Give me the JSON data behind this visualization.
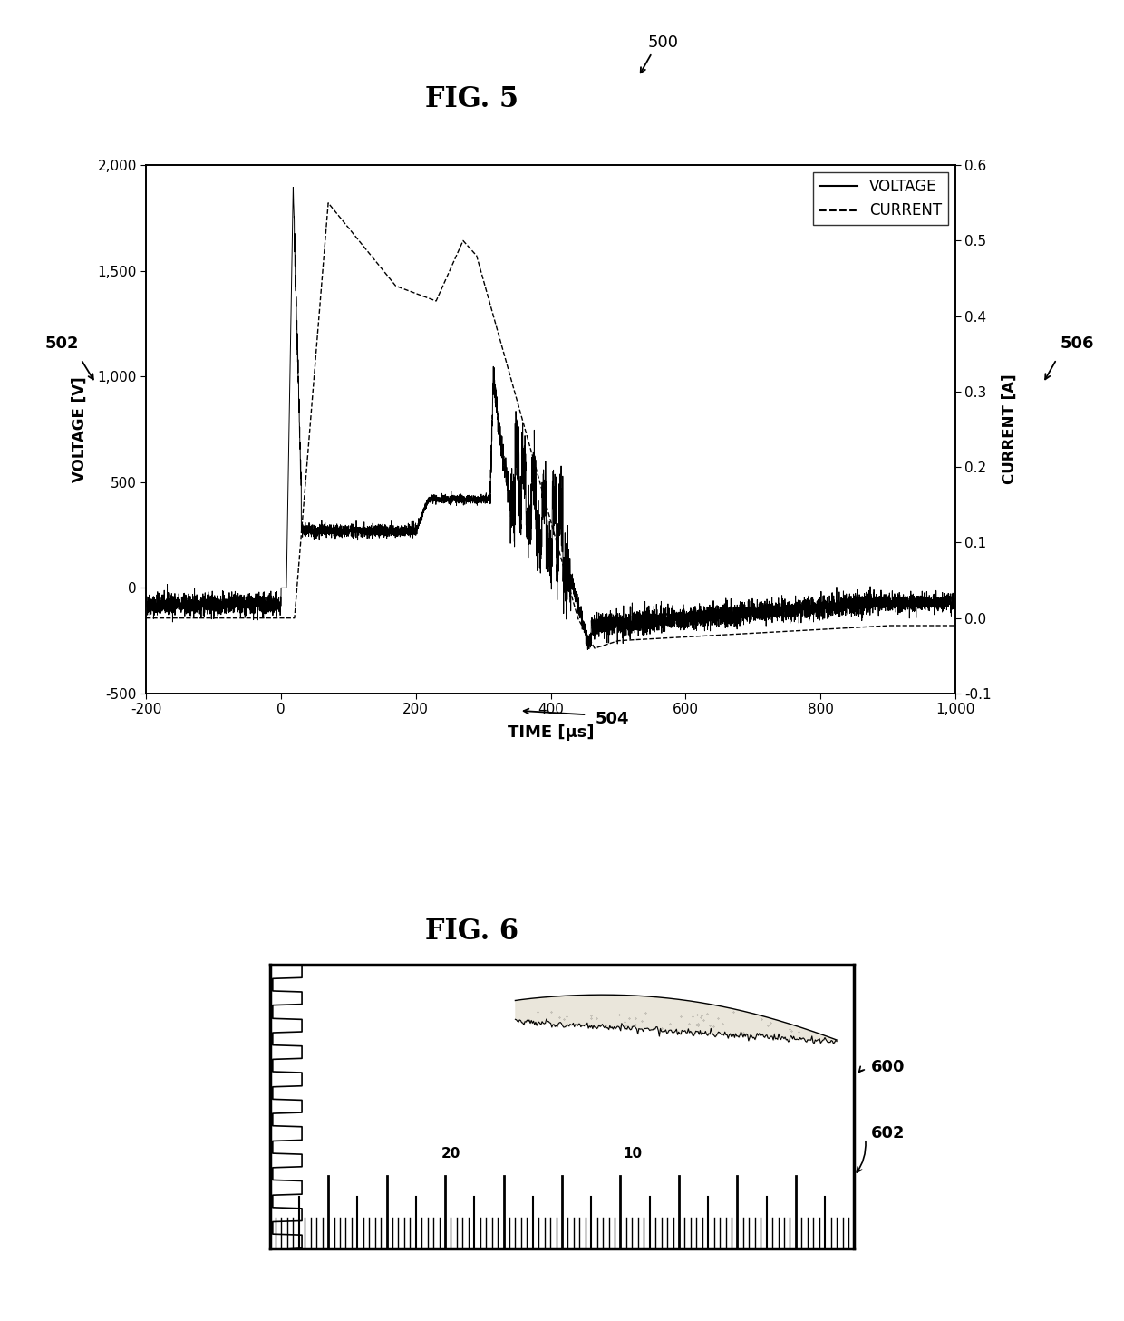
{
  "fig5_title": "FIG. 5",
  "fig6_title": "FIG. 6",
  "label_500": "500",
  "label_502": "502",
  "label_504": "504",
  "label_506": "506",
  "label_600": "600",
  "label_602": "602",
  "ylabel_left": "VOLTAGE [V]",
  "ylabel_right": "CURRENT [A]",
  "xlabel": "TIME [μs]",
  "legend_voltage": "VOLTAGE",
  "legend_current": "CURRENT",
  "xlim": [
    -200,
    1000
  ],
  "ylim_left": [
    -500,
    2000
  ],
  "ylim_right": [
    -0.1,
    0.6
  ],
  "xticks": [
    -200,
    0,
    200,
    400,
    600,
    800,
    1000
  ],
  "yticks_left": [
    -500,
    0,
    500,
    1000,
    1500,
    2000
  ],
  "yticks_right": [
    -0.1,
    0,
    0.1,
    0.2,
    0.3,
    0.4,
    0.5,
    0.6
  ],
  "bg_color": "#ffffff",
  "line_color": "#000000"
}
